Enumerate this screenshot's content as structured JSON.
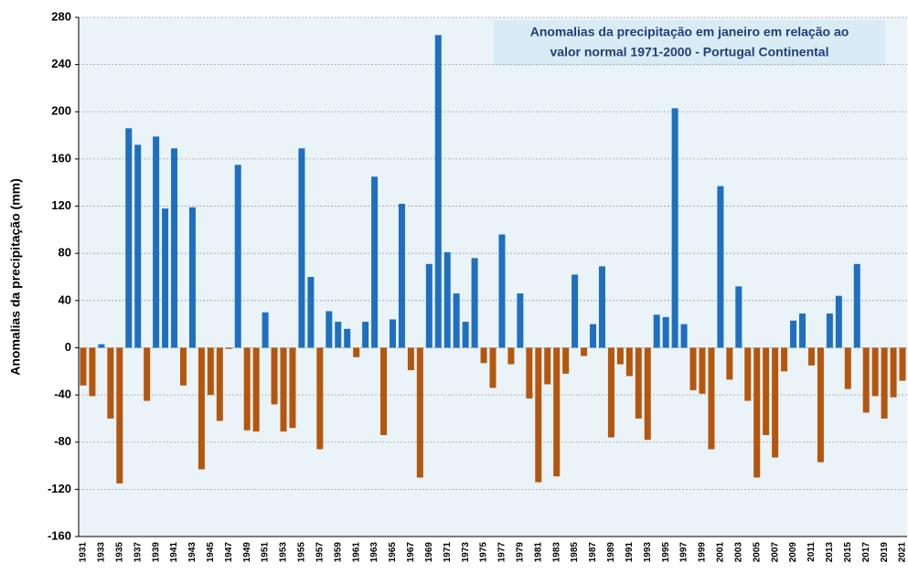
{
  "chart_data": {
    "type": "bar",
    "title": [
      "Anomalias da precipitação em janeiro em relação ao",
      "valor normal  1971-2000 - Portugal Continental"
    ],
    "y_label": "Anomalias da precipitação (mm)",
    "categories": [
      "1931",
      null,
      "1933",
      null,
      "1935",
      null,
      "1937",
      null,
      "1939",
      null,
      "1941",
      null,
      "1943",
      null,
      "1945",
      null,
      "1947",
      null,
      "1949",
      null,
      "1951",
      null,
      "1953",
      null,
      "1955",
      null,
      "1957",
      null,
      "1959",
      null,
      "1961",
      null,
      "1963",
      null,
      "1965",
      null,
      "1967",
      null,
      "1969",
      null,
      "1971",
      null,
      "1973",
      null,
      "1975",
      null,
      "1977",
      null,
      "1979",
      null,
      "1981",
      null,
      "1983",
      null,
      "1985",
      null,
      "1987",
      null,
      "1989",
      null,
      "1991",
      null,
      "1993",
      null,
      "1995",
      null,
      "1997",
      null,
      "1999",
      null,
      "2001",
      null,
      "2003",
      null,
      "2005",
      null,
      "2007",
      null,
      "2009",
      null,
      "2011",
      null,
      "2013",
      null,
      "2015",
      null,
      "2017",
      null,
      "2019",
      null,
      "2021"
    ],
    "values": [
      -32,
      -41,
      3,
      -60,
      -115,
      186,
      172,
      -45,
      179,
      118,
      169,
      -32,
      119,
      -103,
      -40,
      -62,
      -1,
      155,
      -70,
      -71,
      30,
      -48,
      -71,
      -68,
      169,
      60,
      -86,
      31,
      22,
      16,
      -8,
      22,
      145,
      -74,
      24,
      122,
      -19,
      -110,
      71,
      265,
      81,
      46,
      22,
      76,
      -13,
      -34,
      96,
      -14,
      46,
      -43,
      -114,
      -31,
      -109,
      -22,
      62,
      -7,
      20,
      69,
      -76,
      -14,
      -24,
      -60,
      -78,
      28,
      26,
      203,
      20,
      -36,
      -39,
      -86,
      137,
      -27,
      52,
      -45,
      -110,
      -74,
      -93,
      -20,
      23,
      29,
      -15,
      -97,
      29,
      44,
      -35,
      71,
      -55,
      -41,
      -60,
      -42,
      -28
    ],
    "positive_color": "#1f6fc0",
    "negative_color": "#b5560f",
    "ylim": [
      -160,
      280
    ],
    "yticks": [
      -160,
      -120,
      -80,
      -40,
      0,
      40,
      80,
      120,
      160,
      200,
      240,
      280
    ],
    "grid": true
  }
}
